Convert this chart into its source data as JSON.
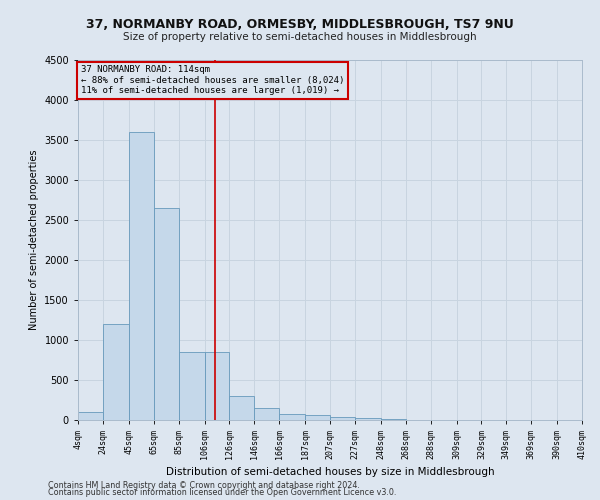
{
  "title1": "37, NORMANBY ROAD, ORMESBY, MIDDLESBROUGH, TS7 9NU",
  "title2": "Size of property relative to semi-detached houses in Middlesbrough",
  "xlabel": "Distribution of semi-detached houses by size in Middlesbrough",
  "ylabel": "Number of semi-detached properties",
  "footnote1": "Contains HM Land Registry data © Crown copyright and database right 2024.",
  "footnote2": "Contains public sector information licensed under the Open Government Licence v3.0.",
  "annotation_title": "37 NORMANBY ROAD: 114sqm",
  "annotation_line1": "← 88% of semi-detached houses are smaller (8,024)",
  "annotation_line2": "11% of semi-detached houses are larger (1,019) →",
  "property_size": 114,
  "bin_edges": [
    4,
    24,
    45,
    65,
    85,
    106,
    126,
    146,
    166,
    187,
    207,
    227,
    248,
    268,
    288,
    309,
    329,
    349,
    369,
    390,
    410
  ],
  "bar_heights": [
    100,
    1200,
    3600,
    2650,
    850,
    850,
    300,
    150,
    80,
    60,
    40,
    20,
    10,
    5,
    3,
    2,
    1,
    1,
    0,
    0
  ],
  "bar_color": "#c5d8ea",
  "bar_edge_color": "#6699bb",
  "vline_color": "#cc0000",
  "annotation_box_color": "#cc0000",
  "grid_color": "#c8d4e0",
  "ylim": [
    0,
    4500
  ],
  "yticks": [
    0,
    500,
    1000,
    1500,
    2000,
    2500,
    3000,
    3500,
    4000,
    4500
  ],
  "background_color": "#dde6f0"
}
